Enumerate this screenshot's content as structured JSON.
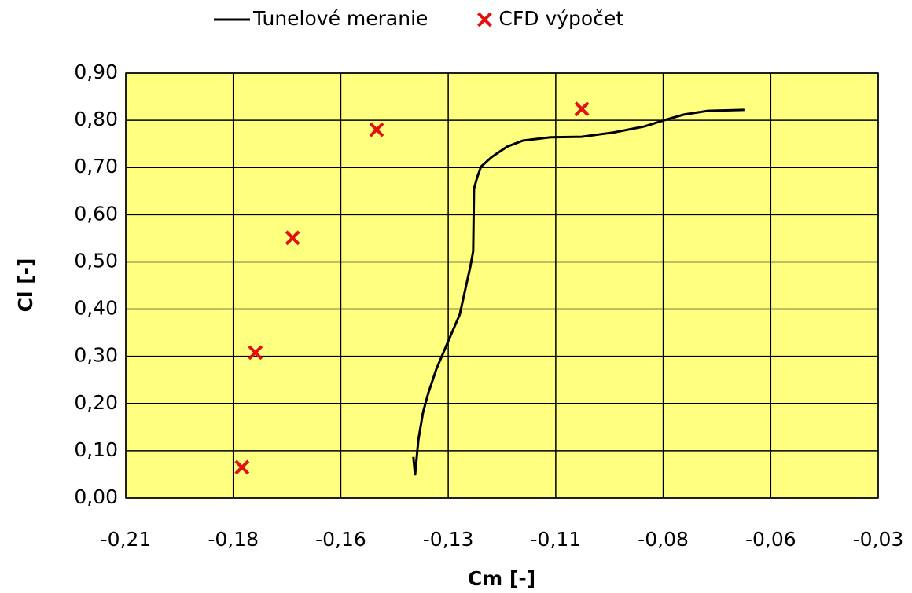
{
  "chart_data": {
    "type": "scatter",
    "xlabel": "Cm [-]",
    "ylabel": "Cl [-]",
    "xlim": [
      -0.21,
      -0.03
    ],
    "ylim": [
      0,
      0.9
    ],
    "xticks": [
      {
        "value": -0.21,
        "label": "-0,21"
      },
      {
        "value": -0.18429,
        "label": "-0,18"
      },
      {
        "value": -0.15857,
        "label": "-0,16"
      },
      {
        "value": -0.13286,
        "label": "-0,13"
      },
      {
        "value": -0.10714,
        "label": "-0,11"
      },
      {
        "value": -0.08143,
        "label": "-0,08"
      },
      {
        "value": -0.05571,
        "label": "-0,06"
      },
      {
        "value": -0.03,
        "label": "-0,03"
      }
    ],
    "yticks": [
      {
        "value": 0,
        "label": "0,00"
      },
      {
        "value": 0.1,
        "label": "0,10"
      },
      {
        "value": 0.2,
        "label": "0,20"
      },
      {
        "value": 0.3,
        "label": "0,30"
      },
      {
        "value": 0.4,
        "label": "0,40"
      },
      {
        "value": 0.5,
        "label": "0,50"
      },
      {
        "value": 0.6,
        "label": "0,60"
      },
      {
        "value": 0.7,
        "label": "0,70"
      },
      {
        "value": 0.8,
        "label": "0,80"
      },
      {
        "value": 0.9,
        "label": "0,90"
      }
    ],
    "grid": true,
    "plot_background": "#ffff80",
    "legend": "top",
    "series": [
      {
        "name": "Tunelové meranie",
        "type": "line",
        "color": "#000000",
        "x": [
          -0.1412,
          -0.1408,
          -0.14,
          -0.1389,
          -0.1376,
          -0.1357,
          -0.1333,
          -0.1301,
          -0.1276,
          -0.1269,
          -0.1267,
          -0.1259,
          -0.125,
          -0.1225,
          -0.1188,
          -0.115,
          -0.1084,
          -0.1009,
          -0.0934,
          -0.0859,
          -0.0812,
          -0.0765,
          -0.0708,
          -0.062
        ],
        "y": [
          0.087,
          0.048,
          0.123,
          0.181,
          0.223,
          0.273,
          0.323,
          0.389,
          0.489,
          0.522,
          0.655,
          0.68,
          0.702,
          0.722,
          0.744,
          0.757,
          0.764,
          0.765,
          0.774,
          0.787,
          0.8,
          0.812,
          0.82,
          0.822
        ]
      },
      {
        "name": "CFD výpočet",
        "type": "scatter",
        "color": "#e31010",
        "x": [
          -0.1822,
          -0.179,
          -0.1701,
          -0.15,
          -0.1009
        ],
        "y": [
          0.065,
          0.308,
          0.551,
          0.78,
          0.824
        ]
      }
    ]
  }
}
